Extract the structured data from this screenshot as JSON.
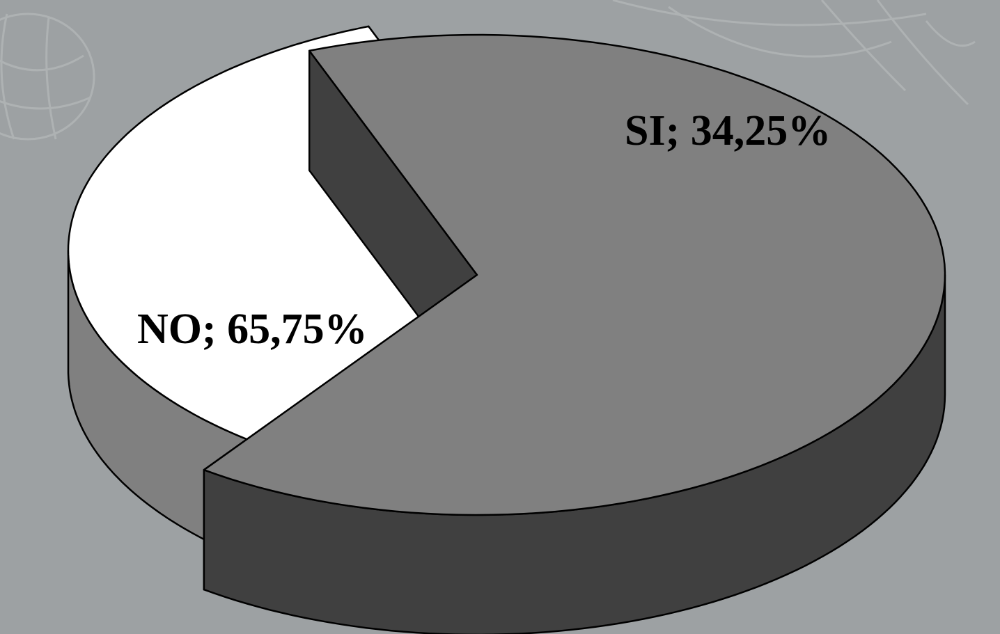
{
  "chart_data": {
    "type": "pie",
    "style": "3d-exploded",
    "categories": [
      "NO",
      "SI"
    ],
    "values": [
      65.75,
      34.25
    ],
    "labels": [
      "NO; 65,75%",
      "SI; 34,25%"
    ],
    "colors": {
      "NO": "#808080",
      "NO_side": "#404040",
      "SI": "#ffffff",
      "SI_side": "#808080",
      "outline": "#000000",
      "background": "#9da1a3"
    },
    "legend": "none"
  }
}
